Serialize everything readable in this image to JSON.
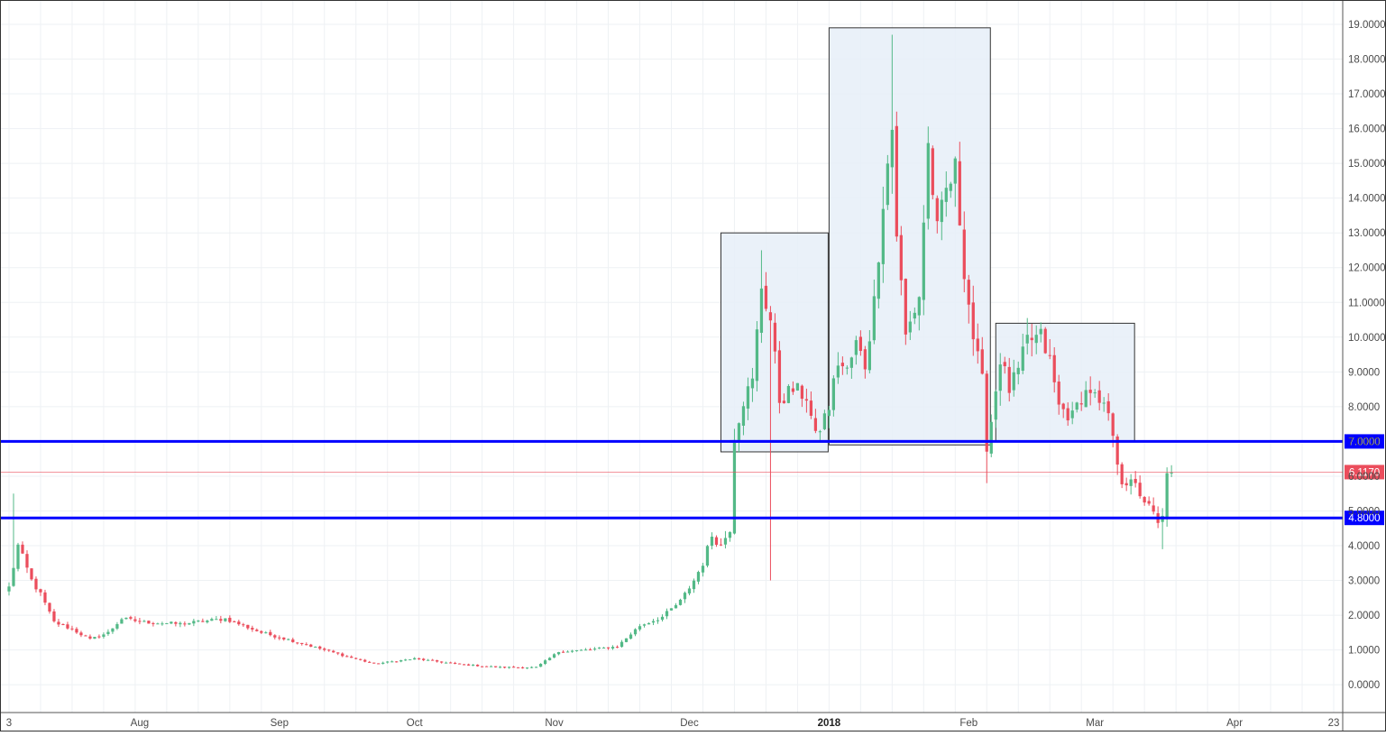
{
  "chart_data": {
    "type": "candlestick",
    "y_axis": {
      "min": -0.8,
      "max": 19.7,
      "side": "right",
      "ticks": [
        0,
        1,
        2,
        3,
        4,
        5,
        6,
        7,
        8,
        9,
        10,
        11,
        12,
        13,
        14,
        15,
        16,
        17,
        18,
        19
      ],
      "decimals": 4
    },
    "x_axis": {
      "start": "2017-07-03",
      "end": "2018-04-25",
      "ticks": [
        {
          "date": "2017-07-03",
          "label": "3",
          "bold": false
        },
        {
          "date": "2017-08-01",
          "label": "Aug",
          "bold": false
        },
        {
          "date": "2017-09-01",
          "label": "Sep",
          "bold": false
        },
        {
          "date": "2017-10-01",
          "label": "Oct",
          "bold": false
        },
        {
          "date": "2017-11-01",
          "label": "Nov",
          "bold": false
        },
        {
          "date": "2017-12-01",
          "label": "Dec",
          "bold": false
        },
        {
          "date": "2018-01-01",
          "label": "2018",
          "bold": true
        },
        {
          "date": "2018-02-01",
          "label": "Feb",
          "bold": false
        },
        {
          "date": "2018-03-01",
          "label": "Mar",
          "bold": false
        },
        {
          "date": "2018-04-01",
          "label": "Apr",
          "bold": false
        },
        {
          "date": "2018-04-23",
          "label": "23",
          "bold": false
        }
      ]
    },
    "grid": true,
    "colors": {
      "up": "#53b987",
      "down": "#eb4d5c",
      "level_line": "#0000ff",
      "current_line": "#eb4d5c",
      "highlight_fill": "#e6eef8",
      "highlight_stroke": "#333333",
      "grid": "#eef1f4"
    },
    "horizontal_levels": [
      {
        "value": 7.0,
        "label": "7.0000"
      },
      {
        "value": 4.8,
        "label": "4.8000"
      }
    ],
    "current_price": {
      "value": 6.117,
      "label": "6.1170"
    },
    "highlight_boxes": [
      {
        "start": "2017-12-08",
        "end": "2017-12-31",
        "low": 6.7,
        "high": 13.0
      },
      {
        "start": "2018-01-01",
        "end": "2018-02-05",
        "low": 6.9,
        "high": 18.9
      },
      {
        "start": "2018-02-07",
        "end": "2018-03-09",
        "low": 7.0,
        "high": 10.4
      }
    ],
    "support_segment": {
      "start": "2017-12-10",
      "end": "2018-02-06",
      "value": 7.0
    },
    "anchors": [
      [
        "2017-07-03",
        2.8
      ],
      [
        "2017-07-05",
        4.0
      ],
      [
        "2017-07-08",
        3.0
      ],
      [
        "2017-07-10",
        2.6
      ],
      [
        "2017-07-13",
        1.8
      ],
      [
        "2017-07-17",
        1.6
      ],
      [
        "2017-07-21",
        1.3
      ],
      [
        "2017-07-25",
        1.5
      ],
      [
        "2017-07-28",
        1.9
      ],
      [
        "2017-08-02",
        1.8
      ],
      [
        "2017-08-10",
        1.75
      ],
      [
        "2017-08-20",
        1.9
      ],
      [
        "2017-08-28",
        1.5
      ],
      [
        "2017-09-03",
        1.3
      ],
      [
        "2017-09-07",
        1.15
      ],
      [
        "2017-09-15",
        0.85
      ],
      [
        "2017-09-22",
        0.6
      ],
      [
        "2017-10-01",
        0.75
      ],
      [
        "2017-10-10",
        0.6
      ],
      [
        "2017-10-20",
        0.5
      ],
      [
        "2017-10-28",
        0.5
      ],
      [
        "2017-11-02",
        0.95
      ],
      [
        "2017-11-08",
        1.0
      ],
      [
        "2017-11-15",
        1.1
      ],
      [
        "2017-11-20",
        1.7
      ],
      [
        "2017-11-25",
        1.95
      ],
      [
        "2017-11-29",
        2.4
      ],
      [
        "2017-12-02",
        3.0
      ],
      [
        "2017-12-04",
        3.5
      ],
      [
        "2017-12-06",
        4.3
      ],
      [
        "2017-12-08",
        4.0
      ],
      [
        "2017-12-10",
        4.5
      ],
      [
        "2017-12-11",
        7.2
      ],
      [
        "2017-12-13",
        8.2
      ],
      [
        "2017-12-15",
        8.7
      ],
      [
        "2017-12-17",
        11.5
      ],
      [
        "2017-12-19",
        10.5
      ],
      [
        "2017-12-21",
        8.2
      ],
      [
        "2017-12-24",
        8.5
      ],
      [
        "2017-12-27",
        8.3
      ],
      [
        "2017-12-29",
        7.1
      ],
      [
        "2018-01-01",
        8.0
      ],
      [
        "2018-01-03",
        9.3
      ],
      [
        "2018-01-05",
        9.0
      ],
      [
        "2018-01-07",
        9.8
      ],
      [
        "2018-01-09",
        9.2
      ],
      [
        "2018-01-11",
        11.0
      ],
      [
        "2018-01-13",
        14.0
      ],
      [
        "2018-01-15",
        16.0
      ],
      [
        "2018-01-16",
        13.0
      ],
      [
        "2018-01-18",
        10.0
      ],
      [
        "2018-01-21",
        11.2
      ],
      [
        "2018-01-23",
        15.5
      ],
      [
        "2018-01-25",
        13.0
      ],
      [
        "2018-01-27",
        14.2
      ],
      [
        "2018-01-29",
        14.8
      ],
      [
        "2018-01-31",
        12.0
      ],
      [
        "2018-02-02",
        10.0
      ],
      [
        "2018-02-04",
        8.7
      ],
      [
        "2018-02-05",
        6.9
      ],
      [
        "2018-02-06",
        7.6
      ],
      [
        "2018-02-08",
        9.4
      ],
      [
        "2018-02-10",
        8.5
      ],
      [
        "2018-02-12",
        9.0
      ],
      [
        "2018-02-14",
        9.9
      ],
      [
        "2018-02-17",
        10.0
      ],
      [
        "2018-02-19",
        9.3
      ],
      [
        "2018-02-21",
        8.0
      ],
      [
        "2018-02-24",
        7.7
      ],
      [
        "2018-02-26",
        8.3
      ],
      [
        "2018-02-28",
        8.5
      ],
      [
        "2018-03-02",
        8.0
      ],
      [
        "2018-03-04",
        7.8
      ],
      [
        "2018-03-05",
        7.0
      ],
      [
        "2018-03-07",
        5.9
      ],
      [
        "2018-03-10",
        5.7
      ],
      [
        "2018-03-12",
        5.3
      ],
      [
        "2018-03-14",
        4.9
      ],
      [
        "2018-03-15",
        4.6
      ],
      [
        "2018-03-16",
        4.8
      ],
      [
        "2018-03-17",
        6.2
      ],
      [
        "2018-03-18",
        6.1
      ]
    ],
    "extreme_wicks": [
      [
        "2017-07-04",
        "high",
        5.5
      ],
      [
        "2017-12-19",
        "low",
        3.0
      ],
      [
        "2017-12-17",
        "high",
        12.5
      ],
      [
        "2018-01-15",
        "high",
        18.7
      ],
      [
        "2018-02-05",
        "low",
        5.8
      ],
      [
        "2018-03-16",
        "low",
        3.9
      ]
    ]
  }
}
